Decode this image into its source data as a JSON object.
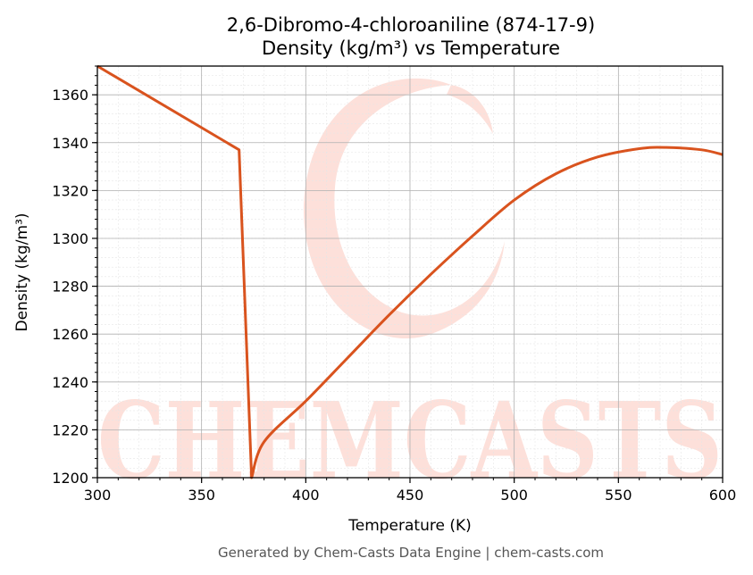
{
  "chart_data": {
    "type": "line",
    "title": "2,6-Dibromo-4-chloroaniline (874-17-9)",
    "subtitle": "Density (kg/m³) vs Temperature",
    "xlabel": "Temperature (K)",
    "ylabel": "Density (kg/m³)",
    "xlim": [
      300,
      600
    ],
    "ylim": [
      1200,
      1372
    ],
    "xticks": [
      300,
      350,
      400,
      450,
      500,
      550,
      600
    ],
    "yticks": [
      1200,
      1220,
      1240,
      1260,
      1280,
      1300,
      1320,
      1340,
      1360
    ],
    "grid": true,
    "series": [
      {
        "color": "#d9531e",
        "points": [
          [
            300,
            1372
          ],
          [
            368,
            1337
          ],
          [
            374,
            1200
          ],
          [
            380,
            1215
          ],
          [
            400,
            1232
          ],
          [
            420,
            1250
          ],
          [
            440,
            1268
          ],
          [
            460,
            1285
          ],
          [
            480,
            1301
          ],
          [
            500,
            1316
          ],
          [
            520,
            1327
          ],
          [
            540,
            1334
          ],
          [
            560,
            1337.5
          ],
          [
            573,
            1338
          ],
          [
            590,
            1337
          ],
          [
            600,
            1335
          ]
        ]
      }
    ]
  },
  "watermark": {
    "text": "CHEMCASTS",
    "color": "#fde0da"
  },
  "footer": "Generated by Chem-Casts Data Engine | chem-casts.com"
}
